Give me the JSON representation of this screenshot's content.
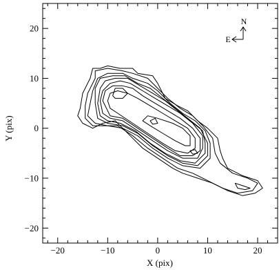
{
  "chart_data": {
    "type": "contour",
    "xlabel": "X (pix)",
    "ylabel": "Y (pix)",
    "xlim": [
      -23,
      24
    ],
    "ylim": [
      -23,
      25
    ],
    "x_ticks": [
      -20,
      -10,
      0,
      10,
      20
    ],
    "y_ticks": [
      -20,
      -10,
      0,
      10,
      20
    ],
    "minor_tick_step": 2,
    "compass": {
      "north_label": "N",
      "east_label": "E"
    },
    "contours": [
      {
        "level": 1,
        "points": [
          [
            -15.5,
            4
          ],
          [
            -15,
            7
          ],
          [
            -13.5,
            10
          ],
          [
            -13,
            12
          ],
          [
            -11.5,
            12
          ],
          [
            -10,
            12.5
          ],
          [
            -7.5,
            12
          ],
          [
            -5,
            12
          ],
          [
            -4,
            11
          ],
          [
            -1,
            10.5
          ],
          [
            0,
            9
          ],
          [
            1.5,
            6
          ],
          [
            4,
            4.5
          ],
          [
            6,
            3.5
          ],
          [
            8,
            1.5
          ],
          [
            10,
            0
          ],
          [
            12,
            -2
          ],
          [
            12.5,
            -4.5
          ],
          [
            13,
            -6
          ],
          [
            14,
            -8
          ],
          [
            17,
            -9.5
          ],
          [
            20,
            -10.5
          ],
          [
            21,
            -12
          ],
          [
            19.5,
            -13
          ],
          [
            17,
            -13.5
          ],
          [
            14,
            -12.5
          ],
          [
            11,
            -11
          ],
          [
            8,
            -10
          ],
          [
            5,
            -9
          ],
          [
            3,
            -8
          ],
          [
            0,
            -6
          ],
          [
            -3,
            -4
          ],
          [
            -5,
            -2
          ],
          [
            -7,
            0
          ],
          [
            -8.5,
            1.5
          ],
          [
            -11,
            1
          ],
          [
            -13,
            0
          ],
          [
            -15,
            1
          ],
          [
            -16,
            2.5
          ]
        ]
      },
      {
        "level": 2,
        "points": [
          [
            -14.5,
            4.5
          ],
          [
            -14,
            7
          ],
          [
            -12.5,
            10
          ],
          [
            -12.5,
            11.5
          ],
          [
            -10,
            12
          ],
          [
            -7,
            11.5
          ],
          [
            -5,
            11
          ],
          [
            -2,
            10
          ],
          [
            0,
            8
          ],
          [
            2,
            6
          ],
          [
            4.5,
            4
          ],
          [
            7,
            2.5
          ],
          [
            9,
            0.5
          ],
          [
            11,
            -2
          ],
          [
            11.5,
            -5
          ],
          [
            12.5,
            -7
          ],
          [
            15,
            -9
          ],
          [
            18,
            -10
          ],
          [
            20,
            -11
          ],
          [
            19,
            -12.5
          ],
          [
            16,
            -13
          ],
          [
            13,
            -12
          ],
          [
            10,
            -10.5
          ],
          [
            7,
            -9
          ],
          [
            4,
            -8
          ],
          [
            1,
            -6
          ],
          [
            -2,
            -4
          ],
          [
            -5,
            -1.5
          ],
          [
            -8,
            0.5
          ],
          [
            -11,
            0.5
          ],
          [
            -13,
            0.5
          ],
          [
            -14.5,
            2
          ]
        ]
      },
      {
        "level": 3,
        "points": [
          [
            -13.5,
            5
          ],
          [
            -13,
            7.5
          ],
          [
            -12,
            10
          ],
          [
            -10,
            11
          ],
          [
            -7,
            11
          ],
          [
            -5,
            10
          ],
          [
            -2,
            9
          ],
          [
            0,
            7.5
          ],
          [
            2.5,
            5
          ],
          [
            5,
            3
          ],
          [
            7.5,
            1.5
          ],
          [
            9.5,
            -0.5
          ],
          [
            10.5,
            -3
          ],
          [
            10.5,
            -6
          ],
          [
            8.5,
            -8
          ],
          [
            5,
            -7.5
          ],
          [
            2,
            -6
          ],
          [
            -1,
            -4
          ],
          [
            -4,
            -1.5
          ],
          [
            -7,
            0
          ],
          [
            -10,
            0.5
          ],
          [
            -12.5,
            1
          ],
          [
            -14,
            2.5
          ]
        ]
      },
      {
        "level": 4,
        "points": [
          [
            -12.5,
            5
          ],
          [
            -12.5,
            8
          ],
          [
            -11.5,
            10
          ],
          [
            -9,
            10.5
          ],
          [
            -6.5,
            10.5
          ],
          [
            -4,
            9
          ],
          [
            -1.5,
            8
          ],
          [
            1,
            6
          ],
          [
            3.5,
            4
          ],
          [
            6,
            2
          ],
          [
            8.5,
            0
          ],
          [
            10,
            -3
          ],
          [
            10,
            -5.5
          ],
          [
            8,
            -7.5
          ],
          [
            5,
            -7
          ],
          [
            2,
            -5.5
          ],
          [
            -1,
            -3.5
          ],
          [
            -4,
            -1
          ],
          [
            -7,
            0.5
          ],
          [
            -10,
            1
          ],
          [
            -12,
            2
          ]
        ]
      },
      {
        "level": 5,
        "points": [
          [
            -12,
            5
          ],
          [
            -11.5,
            8
          ],
          [
            -10.5,
            9.5
          ],
          [
            -8.5,
            10
          ],
          [
            -6,
            10
          ],
          [
            -3.5,
            8.5
          ],
          [
            -1,
            7
          ],
          [
            1.5,
            5.5
          ],
          [
            4,
            3.5
          ],
          [
            6.5,
            1.5
          ],
          [
            9,
            -0.5
          ],
          [
            9.5,
            -3
          ],
          [
            9.5,
            -5
          ],
          [
            7.5,
            -7
          ],
          [
            4.5,
            -6.5
          ],
          [
            1.5,
            -5
          ],
          [
            -1.5,
            -3
          ],
          [
            -4.5,
            -0.5
          ],
          [
            -7.5,
            1
          ],
          [
            -10,
            1.5
          ],
          [
            -11.5,
            2.5
          ]
        ]
      },
      {
        "level": 6,
        "points": [
          [
            -11.5,
            5.5
          ],
          [
            -11,
            7.5
          ],
          [
            -9.5,
            9
          ],
          [
            -7.5,
            9.5
          ],
          [
            -5.5,
            9
          ],
          [
            -3,
            7.5
          ],
          [
            -0.5,
            6
          ],
          [
            2,
            4.5
          ],
          [
            4.5,
            3
          ],
          [
            7,
            1
          ],
          [
            9,
            -1.5
          ],
          [
            9,
            -4
          ],
          [
            8,
            -6
          ],
          [
            5,
            -6
          ],
          [
            2,
            -4.5
          ],
          [
            -1,
            -2.5
          ],
          [
            -4,
            -0.5
          ],
          [
            -7,
            1.5
          ],
          [
            -9.5,
            2
          ],
          [
            -11,
            3
          ]
        ]
      },
      {
        "level": 7,
        "points": [
          [
            -11,
            5.5
          ],
          [
            -10.5,
            7.5
          ],
          [
            -9,
            8.5
          ],
          [
            -7,
            8.5
          ],
          [
            -5,
            8
          ],
          [
            -3,
            6.5
          ],
          [
            -0.5,
            5
          ],
          [
            2,
            3.5
          ],
          [
            4.5,
            2
          ],
          [
            7,
            0
          ],
          [
            8.5,
            -2
          ],
          [
            8.5,
            -4.5
          ],
          [
            7,
            -5.5
          ],
          [
            4.5,
            -5.5
          ],
          [
            2,
            -4
          ],
          [
            -1,
            -2
          ],
          [
            -4,
            0
          ],
          [
            -7,
            2
          ],
          [
            -9.5,
            2.5
          ]
        ]
      },
      {
        "level": 8,
        "points": [
          [
            -10,
            5.5
          ],
          [
            -9.5,
            7
          ],
          [
            -8,
            7.5
          ],
          [
            -6,
            7
          ],
          [
            -4,
            6
          ],
          [
            -1.5,
            4.5
          ],
          [
            1,
            3
          ],
          [
            3.5,
            1.5
          ],
          [
            6,
            0
          ],
          [
            7.5,
            -2
          ],
          [
            7.5,
            -4
          ],
          [
            6,
            -5
          ],
          [
            3.5,
            -4.5
          ],
          [
            1,
            -3
          ],
          [
            -2,
            -1
          ],
          [
            -5,
            1
          ],
          [
            -8,
            3
          ],
          [
            -9.5,
            4
          ]
        ]
      },
      {
        "level": 9,
        "points": [
          [
            -9,
            6.5
          ],
          [
            -8.5,
            8
          ],
          [
            -7,
            8
          ],
          [
            -6,
            7
          ],
          [
            -7,
            6
          ],
          [
            -8.5,
            6
          ]
        ]
      },
      {
        "level": 9,
        "points": [
          [
            -3,
            1.5
          ],
          [
            -2,
            2.5
          ],
          [
            0,
            2
          ],
          [
            3,
            1
          ],
          [
            5,
            0
          ],
          [
            6.5,
            -1.5
          ],
          [
            6.5,
            -3.5
          ],
          [
            5.5,
            -3.5
          ],
          [
            3.5,
            -2.5
          ],
          [
            1,
            -1
          ],
          [
            -1.5,
            0.5
          ]
        ]
      },
      {
        "level": 10,
        "points": [
          [
            -1.5,
            1.5
          ],
          [
            -0.5,
            2
          ],
          [
            0,
            1
          ],
          [
            -1,
            0.8
          ]
        ]
      },
      {
        "level": 10,
        "points": [
          [
            6.5,
            -4.5
          ],
          [
            7.5,
            -4.3
          ],
          [
            8,
            -5
          ],
          [
            7,
            -5.2
          ]
        ]
      },
      {
        "level": 10,
        "points": [
          [
            15.5,
            -11
          ],
          [
            17,
            -11.5
          ],
          [
            18.5,
            -12
          ],
          [
            17.5,
            -12.3
          ],
          [
            16,
            -12
          ]
        ]
      }
    ]
  }
}
